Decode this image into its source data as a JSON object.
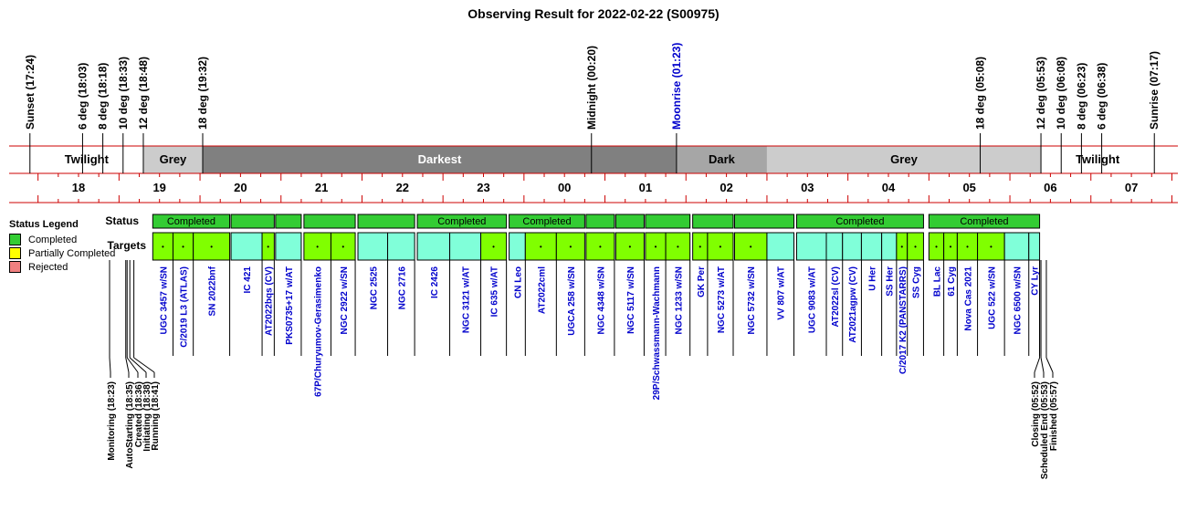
{
  "chart_data": {
    "type": "timeline",
    "title": "Observing Result for 2022-02-22 (S00975)",
    "colors": {
      "twilight": "#ffffff",
      "grey": "#cccccc",
      "dark": "#a6a6a6",
      "darkest": "#808080",
      "completed": "#33cc33",
      "partially_completed": "#ffff00",
      "rejected": "#f08080",
      "target_completed": "#80ff00",
      "target_other": "#80ffd9",
      "axis_line": "#cc0000",
      "moon_text": "#0000cc",
      "target_text": "#0000cc"
    },
    "events_top": [
      {
        "label": "Sunset (17:24)",
        "time": "17:24"
      },
      {
        "label": "6 deg (18:03)",
        "time": "18:03"
      },
      {
        "label": "8 deg (18:18)",
        "time": "18:18"
      },
      {
        "label": "10 deg (18:33)",
        "time": "18:33"
      },
      {
        "label": "12 deg (18:48)",
        "time": "18:48"
      },
      {
        "label": "18 deg (19:32)",
        "time": "19:32"
      },
      {
        "label": "Midnight (00:20)",
        "time": "24:20"
      },
      {
        "label": "Moonrise (01:23)",
        "time": "25:23",
        "moon": true
      },
      {
        "label": "18 deg (05:08)",
        "time": "29:08"
      },
      {
        "label": "12 deg (05:53)",
        "time": "29:53"
      },
      {
        "label": "10 deg (06:08)",
        "time": "30:08"
      },
      {
        "label": "8 deg (06:23)",
        "time": "30:23"
      },
      {
        "label": "6 deg (06:38)",
        "time": "30:38"
      },
      {
        "label": "Sunrise (07:17)",
        "time": "31:17"
      }
    ],
    "sky_periods": [
      {
        "label": "Twilight",
        "start": "17:24",
        "end": "18:48",
        "kind": "twilight"
      },
      {
        "label": "Grey",
        "start": "18:48",
        "end": "19:32",
        "kind": "grey"
      },
      {
        "label": "Darkest",
        "start": "19:32",
        "end": "25:23",
        "kind": "darkest"
      },
      {
        "label": "Dark",
        "start": "25:23",
        "end": "26:30",
        "kind": "dark"
      },
      {
        "label": "Grey",
        "start": "26:30",
        "end": "29:53",
        "kind": "grey"
      },
      {
        "label": "Twilight",
        "start": "29:53",
        "end": "31:17",
        "kind": "twilight"
      }
    ],
    "hour_ticks": [
      "18",
      "19",
      "20",
      "21",
      "22",
      "23",
      "00",
      "01",
      "02",
      "03",
      "04",
      "05",
      "06",
      "07"
    ],
    "row_labels": {
      "status": "Status",
      "targets": "Targets"
    },
    "status_blocks": [
      {
        "label": "Completed",
        "start": "18:55",
        "end": "19:52"
      },
      {
        "label": "",
        "start": "19:53",
        "end": "20:25"
      },
      {
        "label": "",
        "start": "20:26",
        "end": "20:45"
      },
      {
        "label": "",
        "start": "20:47",
        "end": "21:25"
      },
      {
        "label": "",
        "start": "21:27",
        "end": "22:09"
      },
      {
        "label": "Completed",
        "start": "22:11",
        "end": "23:17"
      },
      {
        "label": "Completed",
        "start": "23:19",
        "end": "24:15"
      },
      {
        "label": "",
        "start": "24:16",
        "end": "24:37"
      },
      {
        "label": "",
        "start": "24:38",
        "end": "24:59"
      },
      {
        "label": "",
        "start": "25:00",
        "end": "25:33"
      },
      {
        "label": "",
        "start": "25:35",
        "end": "26:05"
      },
      {
        "label": "",
        "start": "26:06",
        "end": "26:50"
      },
      {
        "label": "Completed",
        "start": "26:52",
        "end": "28:26"
      },
      {
        "label": "Completed",
        "start": "28:30",
        "end": "29:52"
      }
    ],
    "targets": [
      {
        "name": "UGC 3457 w/SN",
        "start": "18:55",
        "end": "19:10",
        "completed": true
      },
      {
        "name": "C/2019 L3 (ATLAS)",
        "start": "19:10",
        "end": "19:25",
        "completed": true
      },
      {
        "name": "SN 2022bnf",
        "start": "19:25",
        "end": "19:52",
        "completed": true
      },
      {
        "name": "IC 421",
        "start": "19:53",
        "end": "20:16",
        "completed": false
      },
      {
        "name": "AT2022bqs (CV)",
        "start": "20:16",
        "end": "20:25",
        "completed": true
      },
      {
        "name": "PKS0735+17 w/AT",
        "start": "20:26",
        "end": "20:45",
        "completed": false
      },
      {
        "name": "67P/Churyumov-Gerasimenko",
        "start": "20:47",
        "end": "21:07",
        "completed": true
      },
      {
        "name": "NGC 2922 w/SN",
        "start": "21:07",
        "end": "21:25",
        "completed": true
      },
      {
        "name": "NGC 2525",
        "start": "21:27",
        "end": "21:49",
        "completed": false
      },
      {
        "name": "NGC 2716",
        "start": "21:49",
        "end": "22:09",
        "completed": false
      },
      {
        "name": "IC 2426",
        "start": "22:11",
        "end": "22:35",
        "completed": false
      },
      {
        "name": "NGC 3121 w/AT",
        "start": "22:35",
        "end": "22:58",
        "completed": false
      },
      {
        "name": "IC 635 w/AT",
        "start": "22:58",
        "end": "23:17",
        "completed": true
      },
      {
        "name": "CN Leo",
        "start": "23:19",
        "end": "23:31",
        "completed": false
      },
      {
        "name": "AT2022cml",
        "start": "23:31",
        "end": "23:54",
        "completed": true
      },
      {
        "name": "UGCA 258 w/SN",
        "start": "23:54",
        "end": "24:15",
        "completed": true
      },
      {
        "name": "NGC 4348 w/SN",
        "start": "24:16",
        "end": "24:37",
        "completed": true
      },
      {
        "name": "NGC 5117 w/SN",
        "start": "24:38",
        "end": "24:59",
        "completed": true
      },
      {
        "name": "29P/Schwassmann-Wachmann",
        "start": "25:00",
        "end": "25:15",
        "completed": true
      },
      {
        "name": "NGC 1233 w/SN",
        "start": "25:15",
        "end": "25:33",
        "completed": true
      },
      {
        "name": "GK Per",
        "start": "25:35",
        "end": "25:46",
        "completed": true
      },
      {
        "name": "NGC 5273 w/AT",
        "start": "25:46",
        "end": "26:05",
        "completed": true
      },
      {
        "name": "NGC 5732 w/SN",
        "start": "26:06",
        "end": "26:30",
        "completed": true
      },
      {
        "name": "VV 807 w/AT",
        "start": "26:30",
        "end": "26:50",
        "completed": false
      },
      {
        "name": "UGC 9083 w/AT",
        "start": "26:52",
        "end": "27:14",
        "completed": false
      },
      {
        "name": "AT2022sl (CV)",
        "start": "27:14",
        "end": "27:26",
        "completed": false
      },
      {
        "name": "AT2021agpw (CV)",
        "start": "27:26",
        "end": "27:40",
        "completed": false
      },
      {
        "name": "U Her",
        "start": "27:40",
        "end": "27:55",
        "completed": false
      },
      {
        "name": "SS Her",
        "start": "27:55",
        "end": "28:06",
        "completed": false
      },
      {
        "name": "C/2017 K2 (PANSTARRS)",
        "start": "28:06",
        "end": "28:14",
        "completed": true
      },
      {
        "name": "SS Cyg",
        "start": "28:14",
        "end": "28:26",
        "completed": true
      },
      {
        "name": "BL Lac",
        "start": "28:30",
        "end": "28:41",
        "completed": true
      },
      {
        "name": "61 Cyg",
        "start": "28:41",
        "end": "28:51",
        "completed": true
      },
      {
        "name": "Nova Cas 2021",
        "start": "28:51",
        "end": "29:06",
        "completed": true
      },
      {
        "name": "UGC 522 w/SN",
        "start": "29:06",
        "end": "29:26",
        "completed": true
      },
      {
        "name": "NGC 6500 w/SN",
        "start": "29:26",
        "end": "29:44",
        "completed": false
      },
      {
        "name": "CY Lyr",
        "start": "29:44",
        "end": "29:52",
        "completed": false
      }
    ],
    "bottom_events": [
      {
        "label": "Monitoring (18:23)",
        "time": "18:23"
      },
      {
        "label": "AutoStarting (18:35)",
        "time": "18:35"
      },
      {
        "label": "Created (18:36)",
        "time": "18:36"
      },
      {
        "label": "Initiating (18:38)",
        "time": "18:38"
      },
      {
        "label": "Running (18:41)",
        "time": "18:41"
      },
      {
        "label": "Closing (05:52)",
        "time": "29:52"
      },
      {
        "label": "Scheduled End (05:53)",
        "time": "29:53"
      },
      {
        "label": "Finished (05:57)",
        "time": "29:57"
      }
    ]
  },
  "legend": {
    "title": "Status Legend",
    "items": [
      {
        "label": "Completed",
        "color": "#33cc33"
      },
      {
        "label": "Partially Completed",
        "color": "#ffff00"
      },
      {
        "label": "Rejected",
        "color": "#f08080"
      }
    ]
  }
}
